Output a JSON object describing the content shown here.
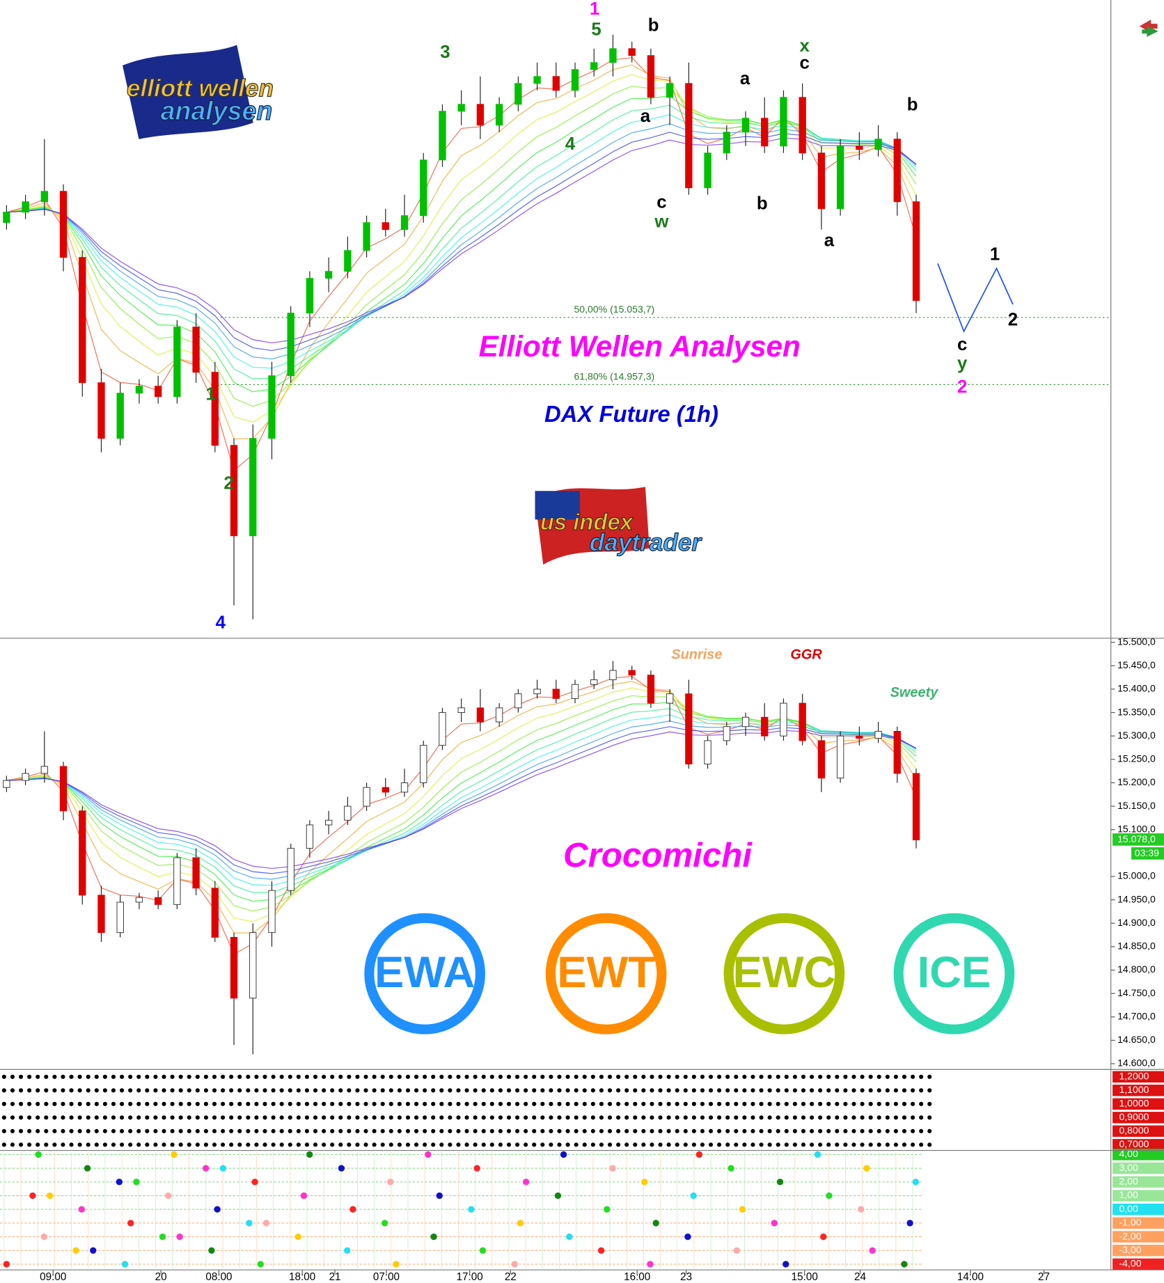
{
  "chart_data": {
    "type": "candlestick",
    "title": "Elliott Wellen Analysen",
    "subtitle": "DAX Future (1h)",
    "up_color": "#00c000",
    "down_color": "#e00000",
    "fib_levels": [
      {
        "value": 15053.7,
        "label": "50,00% (15.053,7)"
      },
      {
        "value": 14957.3,
        "label": "61,80% (14.957,3)"
      }
    ],
    "wave_labels": [
      {
        "text": "1",
        "color": "#ff00ff"
      },
      {
        "text": "5",
        "color": "#1a7a1a"
      },
      {
        "text": "b",
        "color": "#000000"
      },
      {
        "text": "3",
        "color": "#1a7a1a"
      },
      {
        "text": "x",
        "color": "#1a7a1a"
      },
      {
        "text": "c",
        "color": "#000000"
      },
      {
        "text": "a",
        "color": "#000000"
      },
      {
        "text": "b",
        "color": "#000000"
      },
      {
        "text": "a",
        "color": "#000000"
      },
      {
        "text": "4",
        "color": "#1a7a1a"
      },
      {
        "text": "c",
        "color": "#000000"
      },
      {
        "text": "w",
        "color": "#1a7a1a"
      },
      {
        "text": "b",
        "color": "#000000"
      },
      {
        "text": "a",
        "color": "#000000"
      },
      {
        "text": "1",
        "color": "#000000"
      },
      {
        "text": "2",
        "color": "#000000"
      },
      {
        "text": "c",
        "color": "#000000"
      },
      {
        "text": "y",
        "color": "#1a7a1a"
      },
      {
        "text": "2",
        "color": "#ff00ff"
      },
      {
        "text": "1",
        "color": "#1a7a1a"
      },
      {
        "text": "2",
        "color": "#1a7a1a"
      },
      {
        "text": "4",
        "color": "#0000ff"
      }
    ],
    "logos": {
      "ewa_line1": "elliott wellen",
      "ewa_line2": "analysen",
      "usi_line1": "us index",
      "usi_line2": "daytrader"
    },
    "badges": [
      {
        "text": "EWA",
        "color": "#1e90ff"
      },
      {
        "text": "EWT",
        "color": "#ff8c00"
      },
      {
        "text": "EWC",
        "color": "#a8c000"
      },
      {
        "text": "ICE",
        "color": "#30d8b0"
      }
    ],
    "indicator_title": "Crocomichi",
    "annotations": [
      {
        "text": "Sunrise",
        "color": "#f4a460"
      },
      {
        "text": "GGR",
        "color": "#e00000"
      },
      {
        "text": "Sweety",
        "color": "#3cb371"
      }
    ],
    "ylim": [
      14600,
      15500
    ],
    "yticks": [
      {
        "value": 15500,
        "label": "15.500,0"
      },
      {
        "value": 15450,
        "label": "15.450,0"
      },
      {
        "value": 15400,
        "label": "15.400,0"
      },
      {
        "value": 15350,
        "label": "15.350,0"
      },
      {
        "value": 15300,
        "label": "15.300,0"
      },
      {
        "value": 15250,
        "label": "15.250,0"
      },
      {
        "value": 15200,
        "label": "15.200,0"
      },
      {
        "value": 15150,
        "label": "15.150,0"
      },
      {
        "value": 15100,
        "label": "15.100,0"
      },
      {
        "value": 15000,
        "label": "15.000,0"
      },
      {
        "value": 14950,
        "label": "14.950,0"
      },
      {
        "value": 14900,
        "label": "14.900,0"
      },
      {
        "value": 14850,
        "label": "14.850,0"
      },
      {
        "value": 14800,
        "label": "14.800,0"
      },
      {
        "value": 14750,
        "label": "14.750,0"
      },
      {
        "value": 14700,
        "label": "14.700,0"
      },
      {
        "value": 14650,
        "label": "14.650,0"
      },
      {
        "value": 14600,
        "label": "14.600,0"
      }
    ],
    "last_price": {
      "value": 15078,
      "label": "15.078,0"
    },
    "countdown": "03:39",
    "open": [
      15190,
      15205,
      15220,
      15235,
      15140,
      14960,
      14880,
      14945,
      14955,
      14940,
      15040,
      14975,
      14870,
      14740,
      14880,
      14970,
      15060,
      15110,
      15120,
      15150,
      15190,
      15180,
      15200,
      15280,
      15350,
      15360,
      15330,
      15360,
      15390,
      15400,
      15380,
      15410,
      15420,
      15440,
      15430,
      15370,
      15390,
      15240,
      15290,
      15320,
      15340,
      15300,
      15370,
      15290,
      15210,
      15300,
      15295,
      15310,
      15220
    ],
    "high": [
      15215,
      15230,
      15310,
      15245,
      15150,
      14980,
      14960,
      14965,
      14970,
      15050,
      15060,
      14990,
      14880,
      14900,
      14990,
      15070,
      15120,
      15140,
      15170,
      15200,
      15210,
      15230,
      15290,
      15360,
      15380,
      15400,
      15370,
      15400,
      15420,
      15420,
      15420,
      15440,
      15460,
      15450,
      15440,
      15400,
      15420,
      15300,
      15330,
      15350,
      15370,
      15380,
      15390,
      15300,
      15310,
      15320,
      15330,
      15320,
      15230
    ],
    "low": [
      15180,
      15195,
      15200,
      15120,
      14940,
      14860,
      14870,
      14930,
      14930,
      14930,
      14960,
      14860,
      14640,
      14620,
      14850,
      14960,
      15040,
      15090,
      15110,
      15140,
      15170,
      15170,
      15190,
      15270,
      15330,
      15310,
      15320,
      15350,
      15380,
      15370,
      15370,
      15400,
      15400,
      15420,
      15360,
      15330,
      15230,
      15230,
      15280,
      15300,
      15290,
      15290,
      15280,
      15180,
      15200,
      15280,
      15285,
      15200,
      15060
    ],
    "close": [
      15205,
      15220,
      15235,
      15140,
      14960,
      14880,
      14945,
      14955,
      14940,
      15040,
      14975,
      14870,
      14740,
      14880,
      14970,
      15060,
      15110,
      15120,
      15150,
      15190,
      15180,
      15200,
      15280,
      15350,
      15360,
      15330,
      15360,
      15390,
      15400,
      15380,
      15410,
      15420,
      15440,
      15430,
      15370,
      15390,
      15240,
      15290,
      15320,
      15340,
      15300,
      15370,
      15290,
      15210,
      15300,
      15295,
      15310,
      15220,
      15078
    ],
    "signal_yticks": [
      {
        "value": 1.2,
        "label": "1,2000"
      },
      {
        "value": 1.1,
        "label": "1,1000"
      },
      {
        "value": 1,
        "label": "1,0000"
      },
      {
        "value": 0.9,
        "label": "0,9000"
      },
      {
        "value": 0.8,
        "label": "0,8000"
      },
      {
        "value": 0.7,
        "label": "0,7000"
      }
    ],
    "oscillator_yticks": [
      {
        "value": 4,
        "label": "4,00"
      },
      {
        "value": 3,
        "label": "3,00"
      },
      {
        "value": 2,
        "label": "2,00"
      },
      {
        "value": 1,
        "label": "1,00"
      },
      {
        "value": 0,
        "label": "0,00"
      },
      {
        "value": -1,
        "label": "-1,00"
      },
      {
        "value": -2,
        "label": "-2,00"
      },
      {
        "value": -3,
        "label": "-3,00"
      },
      {
        "value": -4,
        "label": "-4,00"
      }
    ],
    "x_labels": [
      "09:00",
      "20",
      "08:00",
      "18:00",
      "21",
      "07:00",
      "17:00",
      "22",
      "16:00",
      "23",
      "15:00",
      "24",
      "14:00",
      "27"
    ]
  }
}
